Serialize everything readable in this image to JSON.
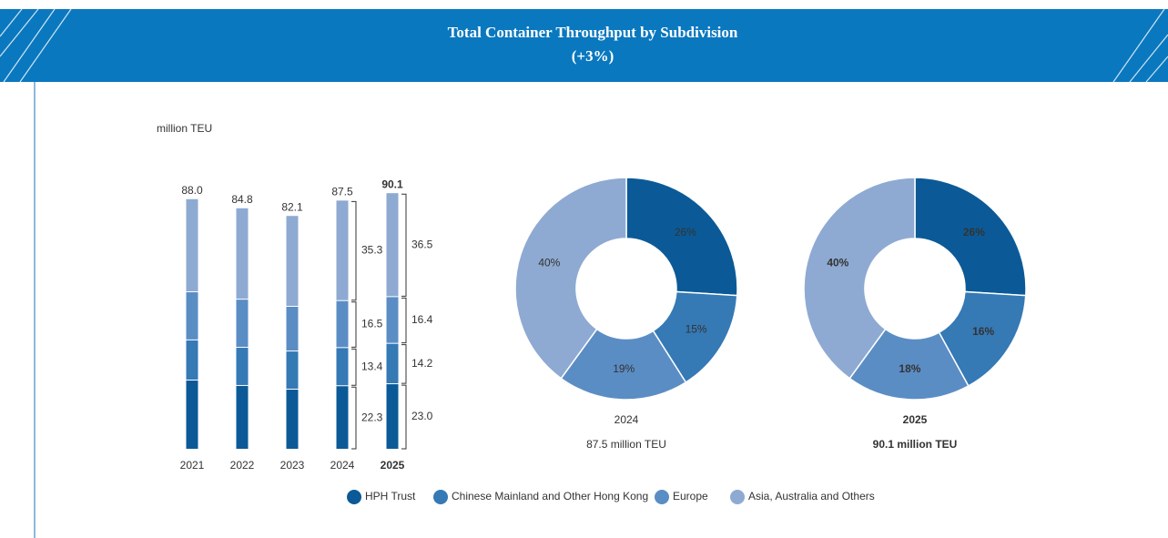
{
  "header": {
    "title": "Total Container Throughput by Subdivision",
    "subtitle": "(+3%)"
  },
  "chart_data": [
    {
      "type": "bar",
      "stacked": true,
      "y_label": "million TEU",
      "categories": [
        "2021",
        "2022",
        "2023",
        "2024",
        "2025"
      ],
      "ylim": [
        0,
        94
      ],
      "totals": [
        88,
        84.8,
        82.1,
        87.5,
        90.1
      ],
      "total_labels": [
        "88.0",
        "84.8",
        "82.1",
        "87.5",
        "90.1"
      ],
      "series": [
        {
          "name": "HPH Trust",
          "color": "#0b5a97",
          "values": [
            24.3,
            22.4,
            21.1,
            22.3,
            23
          ],
          "value_labels": [
            null,
            null,
            null,
            "22.3",
            "23.0"
          ]
        },
        {
          "name": "Chinese Mainland and Other Hong Kong",
          "color": "#3579b5",
          "values": [
            14.1,
            13.4,
            13.4,
            13.4,
            14.2
          ],
          "value_labels": [
            null,
            null,
            null,
            "13.4",
            "14.2"
          ]
        },
        {
          "name": "Europe",
          "color": "#5b8dc5",
          "values": [
            16.9,
            16.9,
            15.7,
            16.5,
            16.4
          ],
          "value_labels": [
            null,
            null,
            null,
            "16.5",
            "16.4"
          ]
        },
        {
          "name": "Asia, Australia and Others",
          "color": "#8eaad2",
          "values": [
            32.7,
            32.1,
            31.9,
            35.3,
            36.5
          ],
          "value_labels": [
            null,
            null,
            null,
            "35.3",
            "36.5"
          ]
        }
      ]
    },
    {
      "type": "pie",
      "donut": true,
      "title": "2024",
      "subtitle": "87.5 million TEU",
      "emphasis": false,
      "categories": [
        "HPH Trust",
        "Chinese Mainland and Other Hong Kong",
        "Europe",
        "Asia, Australia and Others"
      ],
      "colors": [
        "#0b5a97",
        "#3579b5",
        "#5b8dc5",
        "#8eaad2"
      ],
      "values": [
        26,
        15,
        19,
        40
      ],
      "value_labels": [
        "26%",
        "15%",
        "19%",
        "40%"
      ]
    },
    {
      "type": "pie",
      "donut": true,
      "title": "2025",
      "subtitle": "90.1 million TEU",
      "emphasis": true,
      "categories": [
        "HPH Trust",
        "Chinese Mainland and Other Hong Kong",
        "Europe",
        "Asia, Australia and Others"
      ],
      "colors": [
        "#0b5a97",
        "#3579b5",
        "#5b8dc5",
        "#8eaad2"
      ],
      "values": [
        26,
        16,
        18,
        40
      ],
      "value_labels": [
        "26%",
        "16%",
        "18%",
        "40%"
      ]
    }
  ]
}
